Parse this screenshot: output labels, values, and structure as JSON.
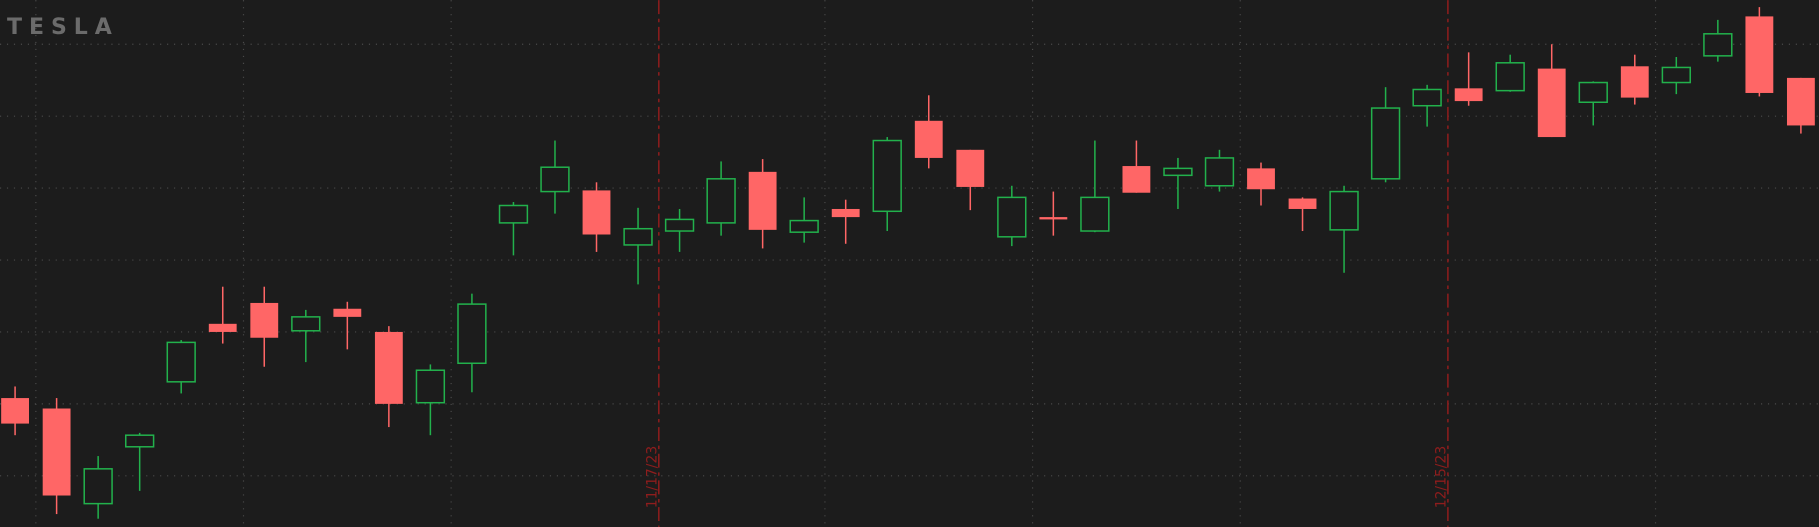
{
  "logo": "TESLA",
  "chart_data": {
    "type": "candlestick",
    "categories": [
      null,
      null,
      null,
      null,
      null,
      null,
      null,
      null,
      null,
      null,
      null,
      null,
      null,
      null,
      null,
      "11/17/23",
      null,
      null,
      null,
      null,
      null,
      null,
      null,
      null,
      null,
      null,
      null,
      null,
      null,
      null,
      null,
      null,
      null,
      null,
      "12/15/23",
      null,
      null,
      null,
      null,
      null,
      null,
      null,
      null,
      null
    ],
    "open": [
      67,
      58,
      -24,
      25,
      81,
      131,
      149,
      125,
      144,
      124,
      63,
      97,
      218,
      245,
      246,
      199,
      211,
      218,
      262,
      210,
      230,
      228,
      306,
      281,
      206,
      223,
      211,
      267,
      259,
      250,
      265,
      239,
      212,
      256,
      319,
      334,
      332,
      351,
      322,
      353,
      339,
      362,
      396,
      343
    ],
    "high": [
      77,
      67,
      17,
      37,
      117,
      163,
      163,
      143,
      150,
      129,
      96,
      157,
      236,
      289,
      253,
      231,
      230,
      271,
      273,
      240,
      238,
      292,
      328,
      281,
      250,
      245,
      289,
      289,
      274,
      281,
      270,
      240,
      250,
      335,
      337,
      365,
      363,
      372,
      340,
      363,
      361,
      393,
      404,
      343
    ],
    "low": [
      35,
      -33,
      -37,
      -13,
      71,
      114,
      94,
      98,
      109,
      42,
      35,
      72,
      190,
      226,
      193,
      165,
      193,
      207,
      196,
      201,
      200,
      211,
      265,
      229,
      198,
      207,
      210,
      244,
      230,
      245,
      233,
      211,
      175,
      253,
      301,
      319,
      331,
      292,
      302,
      320,
      329,
      357,
      327,
      295
    ],
    "close": [
      45,
      -17,
      6,
      35,
      115,
      124,
      119,
      137,
      137,
      62,
      91,
      148,
      233,
      266,
      208,
      213,
      221,
      256,
      212,
      220,
      223,
      289,
      274,
      249,
      240,
      221,
      240,
      244,
      265,
      274,
      247,
      230,
      245,
      317,
      333,
      323,
      356,
      292,
      339,
      326,
      352,
      381,
      330,
      302
    ],
    "up_color": "#22b14c",
    "down_color": "#ff6666",
    "ylim": [
      -44,
      410
    ],
    "yticks": [
      0,
      62,
      124,
      186,
      248,
      310,
      372
    ],
    "grid": true
  }
}
